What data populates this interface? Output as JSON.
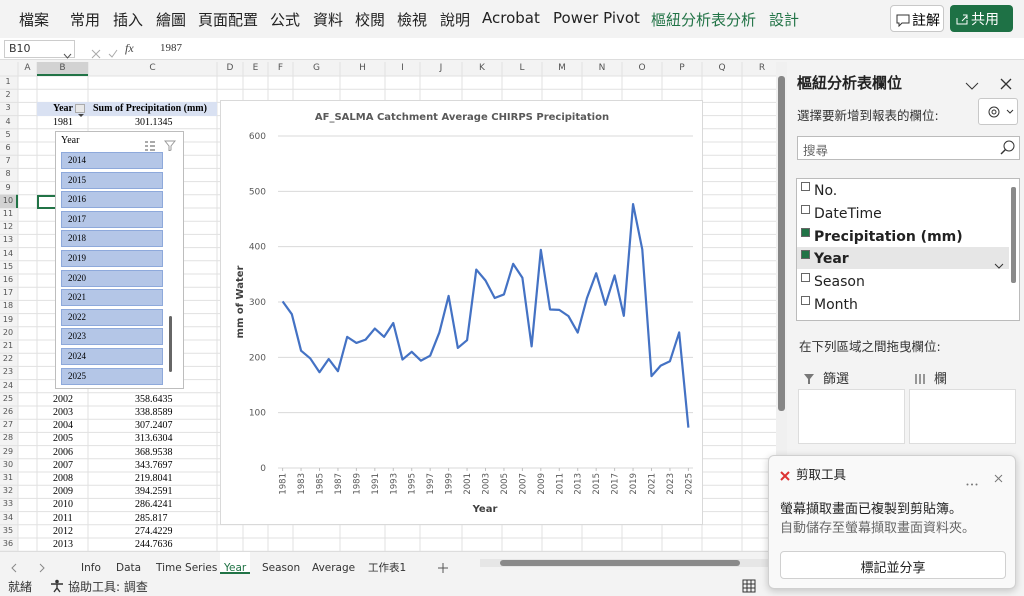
{
  "ribbon": {
    "tabs": [
      "檔案",
      "常用",
      "插入",
      "繪圖",
      "頁面配置",
      "公式",
      "資料",
      "校閱",
      "檢視",
      "說明",
      "Acrobat",
      "Power Pivot",
      "樞紐分析表分析",
      "設計"
    ],
    "contextual_tabs": [
      "樞紐分析表分析",
      "設計"
    ],
    "comment_button": "註解",
    "share_button": "共用"
  },
  "formula_bar": {
    "name_box": "B10",
    "fx_label": "fx",
    "formula": "1987"
  },
  "sheet": {
    "columns": [
      "A",
      "B",
      "C",
      "D",
      "E",
      "F",
      "G",
      "H",
      "I",
      "J",
      "K",
      "L",
      "M",
      "N",
      "O",
      "P",
      "Q",
      "R"
    ],
    "rows": [
      1,
      2,
      3,
      4,
      5,
      6,
      7,
      8,
      9,
      10,
      11,
      12,
      13,
      14,
      15,
      16,
      17,
      18,
      19,
      20,
      21,
      22,
      23,
      24,
      25,
      26,
      27,
      28,
      29,
      30,
      31,
      32,
      33,
      34,
      35,
      36
    ]
  },
  "pivot_table": {
    "headers": [
      "Year",
      "Sum of Precipitation (mm)"
    ],
    "rows": [
      [
        "1981",
        "301.1345"
      ],
      [
        "2002",
        "358.6435"
      ],
      [
        "2003",
        "338.8589"
      ],
      [
        "2004",
        "307.2407"
      ],
      [
        "2005",
        "313.6304"
      ],
      [
        "2006",
        "368.9538"
      ],
      [
        "2007",
        "343.7697"
      ],
      [
        "2008",
        "219.8041"
      ],
      [
        "2009",
        "394.2591"
      ],
      [
        "2010",
        "286.4241"
      ],
      [
        "2011",
        "285.817"
      ],
      [
        "2012",
        "274.4229"
      ],
      [
        "2013",
        "244.7636"
      ]
    ]
  },
  "slicer": {
    "title": "Year",
    "items": [
      "2014",
      "2015",
      "2016",
      "2017",
      "2018",
      "2019",
      "2020",
      "2021",
      "2022",
      "2023",
      "2024",
      "2025"
    ]
  },
  "chart_data": {
    "type": "line",
    "title": "AF_SALMA Catchment Average CHIRPS Precipitation",
    "x_label": "Year",
    "y_label": "mm of Water",
    "color": "#4472c4",
    "grid": true,
    "x": [
      1981,
      1982,
      1983,
      1984,
      1985,
      1986,
      1987,
      1988,
      1989,
      1990,
      1991,
      1992,
      1993,
      1994,
      1995,
      1996,
      1997,
      1998,
      1999,
      2000,
      2001,
      2002,
      2003,
      2004,
      2005,
      2006,
      2007,
      2008,
      2009,
      2010,
      2011,
      2012,
      2013,
      2014,
      2015,
      2016,
      2017,
      2018,
      2019,
      2020,
      2021,
      2022,
      2023,
      2024,
      2025
    ],
    "values": [
      301.1345,
      278,
      212,
      198,
      173,
      197,
      175,
      237,
      226,
      232,
      252,
      237,
      262,
      196,
      210,
      194,
      203,
      245,
      311,
      217,
      231,
      358.6435,
      338.8589,
      307.2407,
      313.6304,
      368.9538,
      343.7697,
      219.8041,
      394.2591,
      286.4241,
      285.817,
      274.4229,
      244.7636,
      307,
      352,
      295,
      348,
      275,
      477,
      395,
      166,
      185,
      193,
      245,
      73
    ],
    "xlim": [
      1980.5,
      2025.5
    ],
    "xticks": [
      1981,
      1983,
      1985,
      1987,
      1989,
      1991,
      1993,
      1995,
      1997,
      1999,
      2001,
      2003,
      2005,
      2007,
      2009,
      2011,
      2013,
      2015,
      2017,
      2019,
      2021,
      2023,
      2025
    ],
    "ylim": [
      0,
      600
    ],
    "yticks": [
      0,
      100,
      200,
      300,
      400,
      500,
      600
    ]
  },
  "field_pane": {
    "title": "樞紐分析表欄位",
    "choose_label": "選擇要新增到報表的欄位:",
    "search_placeholder": "搜尋",
    "fields": [
      {
        "name": "No.",
        "checked": false
      },
      {
        "name": "DateTime",
        "checked": false
      },
      {
        "name": "Precipitation (mm)",
        "checked": true
      },
      {
        "name": "Year",
        "checked": true
      },
      {
        "name": "Season",
        "checked": false
      },
      {
        "name": "Month",
        "checked": false
      }
    ],
    "drag_label": "在下列區域之間拖曳欄位:",
    "areas": [
      "篩選",
      "欄"
    ]
  },
  "sheet_tabs": {
    "tabs": [
      "Info",
      "Data",
      "Time Series",
      "Year",
      "Season",
      "Average",
      "工作表1"
    ],
    "active": "Year"
  },
  "snip_toast": {
    "title": "剪取工具",
    "message": "螢幕擷取畫面已複製到剪貼簿。",
    "detail": "自動儲存至螢幕擷取畫面資料夾。",
    "button": "標記並分享"
  },
  "status_bar": {
    "ready": "就緒",
    "accessibility": "協助工具: 調查"
  }
}
